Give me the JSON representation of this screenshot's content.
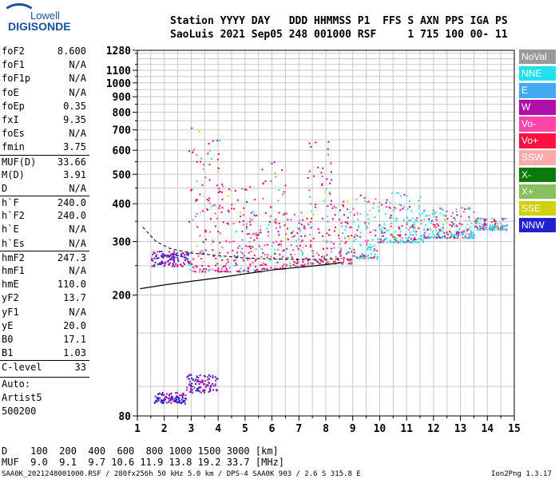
{
  "logo": {
    "top": "Lowell",
    "bottom": "DIGISONDE"
  },
  "header": {
    "line1": "Station YYYY DAY   DDD HHMMSS P1  FFS S AXN PPS IGA PS",
    "line2": "SaoLuis 2021 Sep05 248 001000 RSF     1 715 100 00- 11"
  },
  "params": [
    {
      "k": "foF2",
      "v": "8.600"
    },
    {
      "k": "foF1",
      "v": "N/A"
    },
    {
      "k": "foF1p",
      "v": "N/A"
    },
    {
      "k": "foE",
      "v": "N/A"
    },
    {
      "k": "foEp",
      "v": "0.35"
    },
    {
      "k": "fxI",
      "v": "9.35"
    },
    {
      "k": "foEs",
      "v": "N/A"
    },
    {
      "k": "fmin",
      "v": "3.75"
    },
    {
      "k": "MUF(D)",
      "v": "33.66"
    },
    {
      "k": "M(D)",
      "v": "3.91"
    },
    {
      "k": "D",
      "v": "N/A"
    },
    {
      "k": "h`F",
      "v": "240.0"
    },
    {
      "k": "h`F2",
      "v": "240.0"
    },
    {
      "k": "h`E",
      "v": "N/A"
    },
    {
      "k": "h`Es",
      "v": "N/A"
    },
    {
      "k": "hmF2",
      "v": "247.3"
    },
    {
      "k": "hmF1",
      "v": "N/A"
    },
    {
      "k": "hmE",
      "v": "110.0"
    },
    {
      "k": "yF2",
      "v": "13.7"
    },
    {
      "k": "yF1",
      "v": "N/A"
    },
    {
      "k": "yE",
      "v": "20.0"
    },
    {
      "k": "B0",
      "v": "17.1"
    },
    {
      "k": "B1",
      "v": "1.03"
    },
    {
      "k": "C-level",
      "v": "33"
    }
  ],
  "auto": {
    "l1": "Auto:",
    "l2": "Artist5",
    "l3": "500200"
  },
  "legend": [
    {
      "label": "NoVal",
      "color": "#9a9a9a"
    },
    {
      "label": "NNE",
      "color": "#22e0f0"
    },
    {
      "label": "E",
      "color": "#44aaf0"
    },
    {
      "label": "W",
      "color": "#b00ea8"
    },
    {
      "label": "Vo-",
      "color": "#ff44aa"
    },
    {
      "label": "Vo+",
      "color": "#ff1040"
    },
    {
      "label": "SSW",
      "color": "#ffaaaa"
    },
    {
      "label": "X-",
      "color": "#0a7a0a"
    },
    {
      "label": "X+",
      "color": "#88c060"
    },
    {
      "label": "SSE",
      "color": "#d0d010"
    },
    {
      "label": "NNW",
      "color": "#2020d0"
    }
  ],
  "chart_data": {
    "type": "scatter",
    "title": "",
    "xlabel": "",
    "ylabel": "",
    "xlim": [
      1,
      15
    ],
    "ylim": [
      80,
      1280
    ],
    "x_ticks": [
      1,
      2,
      3,
      4,
      5,
      6,
      7,
      8,
      9,
      10,
      11,
      12,
      13,
      14,
      15
    ],
    "y_ticks": [
      80,
      200,
      300,
      400,
      500,
      600,
      700,
      800,
      900,
      1000,
      1100,
      1280
    ],
    "scale": "log",
    "grid": true,
    "trace_F2": [
      [
        1.1,
        210
      ],
      [
        2,
        216
      ],
      [
        3,
        222
      ],
      [
        4,
        228
      ],
      [
        5,
        235
      ],
      [
        6,
        242
      ],
      [
        7,
        247
      ],
      [
        8,
        252
      ],
      [
        8.6,
        256
      ]
    ],
    "dashed_trace": [
      [
        1.2,
        335
      ],
      [
        1.7,
        300
      ],
      [
        2.2,
        285
      ],
      [
        3,
        275
      ],
      [
        4,
        270
      ],
      [
        5,
        265
      ],
      [
        6,
        263
      ],
      [
        7,
        262
      ],
      [
        8,
        262
      ],
      [
        8.6,
        264
      ]
    ],
    "echo_regions": [
      {
        "x": [
          2.9,
          4.1
        ],
        "y": [
          240,
          720
        ]
      },
      {
        "x": [
          4.1,
          5.6
        ],
        "y": [
          240,
          470
        ]
      },
      {
        "x": [
          5.6,
          6.5
        ],
        "y": [
          245,
          560
        ]
      },
      {
        "x": [
          6.5,
          7.2
        ],
        "y": [
          250,
          380
        ]
      },
      {
        "x": [
          7.2,
          8.2
        ],
        "y": [
          255,
          700
        ]
      },
      {
        "x": [
          8.2,
          9.0
        ],
        "y": [
          255,
          420
        ]
      },
      {
        "x": [
          9.0,
          9.9
        ],
        "y": [
          265,
          430
        ]
      },
      {
        "x": [
          9.9,
          11.6
        ],
        "y": [
          300,
          440
        ]
      },
      {
        "x": [
          11.6,
          13.5
        ],
        "y": [
          310,
          390
        ]
      },
      {
        "x": [
          13.5,
          14.7
        ],
        "y": [
          330,
          360
        ]
      },
      {
        "x": [
          1.5,
          2.9
        ],
        "y": [
          250,
          280
        ]
      },
      {
        "x": [
          1.6,
          2.8
        ],
        "y": [
          88,
          96
        ]
      },
      {
        "x": [
          2.8,
          4.0
        ],
        "y": [
          96,
          110
        ]
      }
    ]
  },
  "bottom": {
    "d_line": "D    100  200  400  600  800 1000 1500 3000 [km]",
    "muf_line": "MUF  9.0  9.1  9.7 10.6 11.9 13.8 19.2 33.7 [MHz]",
    "footer": "SAA0K_2021248001000.RSF / 280fx256h 50 kHz 5.0 km / DPS-4 SAA0K 903 / 2.6 S 315.8 E",
    "version": "Ion2Png 1.3.17"
  }
}
